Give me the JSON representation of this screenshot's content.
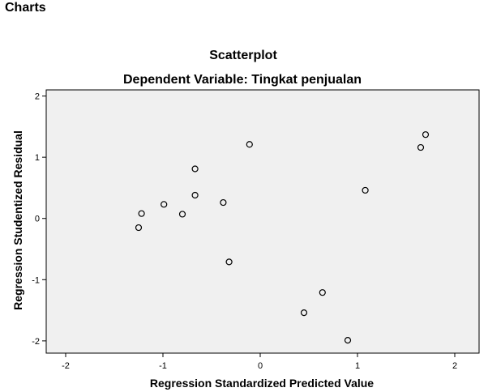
{
  "page": {
    "heading": "Charts"
  },
  "chart_data": {
    "type": "scatter",
    "title": "Scatterplot",
    "subtitle": "Dependent Variable: Tingkat penjualan",
    "xlabel": "Regression Standardized Predicted Value",
    "ylabel": "Regression Studentized Residual",
    "xlim": [
      -2.2,
      2.25
    ],
    "ylim": [
      -2.2,
      2.1
    ],
    "xticks": [
      -2,
      -1,
      0,
      1,
      2
    ],
    "yticks": [
      -2,
      -1,
      0,
      1,
      2
    ],
    "xtick_labels": [
      "-2",
      "-1",
      "0",
      "1",
      "2"
    ],
    "ytick_labels": [
      "-2",
      "-1",
      "0",
      "1",
      "2"
    ],
    "grid": false,
    "plot_background": "#f0f0f0",
    "marker_color": "#000000",
    "points": [
      {
        "x": -1.25,
        "y": -0.15
      },
      {
        "x": -1.22,
        "y": 0.08
      },
      {
        "x": -0.99,
        "y": 0.23
      },
      {
        "x": -0.8,
        "y": 0.07
      },
      {
        "x": -0.67,
        "y": 0.81
      },
      {
        "x": -0.67,
        "y": 0.38
      },
      {
        "x": -0.38,
        "y": 0.26
      },
      {
        "x": -0.32,
        "y": -0.71
      },
      {
        "x": -0.11,
        "y": 1.21
      },
      {
        "x": 0.45,
        "y": -1.54
      },
      {
        "x": 0.64,
        "y": -1.21
      },
      {
        "x": 0.9,
        "y": -1.99
      },
      {
        "x": 1.08,
        "y": 0.46
      },
      {
        "x": 1.65,
        "y": 1.16
      },
      {
        "x": 1.7,
        "y": 1.37
      }
    ]
  }
}
